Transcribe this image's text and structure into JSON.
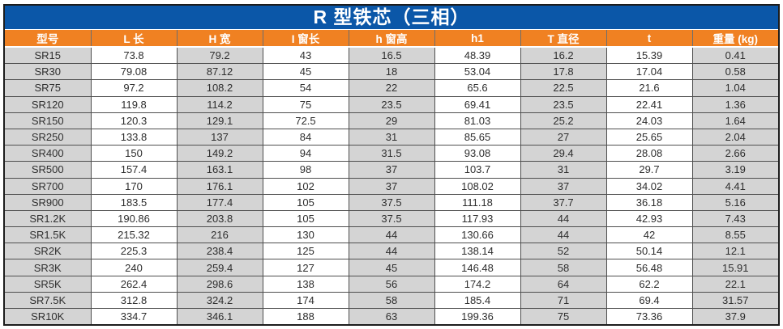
{
  "table": {
    "title": "R 型铁芯（三相）",
    "columns": [
      "型号",
      "L 长",
      "H 宽",
      "I 窗长",
      "h 窗高",
      "h1",
      "T 直径",
      "t",
      "重量 (kg)"
    ],
    "rows": [
      [
        "SR15",
        "73.8",
        "79.2",
        "43",
        "16.5",
        "48.39",
        "16.2",
        "15.39",
        "0.41"
      ],
      [
        "SR30",
        "79.08",
        "87.12",
        "45",
        "18",
        "53.04",
        "17.8",
        "17.04",
        "0.58"
      ],
      [
        "SR75",
        "97.2",
        "108.2",
        "54",
        "22",
        "65.6",
        "22.5",
        "21.6",
        "1.04"
      ],
      [
        "SR120",
        "119.8",
        "114.2",
        "75",
        "23.5",
        "69.41",
        "23.5",
        "22.41",
        "1.36"
      ],
      [
        "SR150",
        "120.3",
        "129.1",
        "72.5",
        "29",
        "81.03",
        "25.2",
        "24.03",
        "1.64"
      ],
      [
        "SR250",
        "133.8",
        "137",
        "84",
        "31",
        "85.65",
        "27",
        "25.65",
        "2.04"
      ],
      [
        "SR400",
        "150",
        "149.2",
        "94",
        "31.5",
        "93.08",
        "29.4",
        "28.08",
        "2.66"
      ],
      [
        "SR500",
        "157.4",
        "163.1",
        "98",
        "37",
        "103.7",
        "31",
        "29.7",
        "3.19"
      ],
      [
        "SR700",
        "170",
        "176.1",
        "102",
        "37",
        "108.02",
        "37",
        "34.02",
        "4.41"
      ],
      [
        "SR900",
        "183.5",
        "177.4",
        "105",
        "37.5",
        "111.18",
        "37.7",
        "36.18",
        "5.16"
      ],
      [
        "SR1.2K",
        "190.86",
        "203.8",
        "105",
        "37.5",
        "117.93",
        "44",
        "42.93",
        "7.43"
      ],
      [
        "SR1.5K",
        "215.32",
        "216",
        "130",
        "44",
        "130.66",
        "44",
        "42",
        "8.55"
      ],
      [
        "SR2K",
        "225.3",
        "238.4",
        "125",
        "44",
        "138.14",
        "52",
        "50.14",
        "12.1"
      ],
      [
        "SR3K",
        "240",
        "259.4",
        "127",
        "45",
        "146.48",
        "58",
        "56.48",
        "15.91"
      ],
      [
        "SR5K",
        "262.4",
        "298.6",
        "138",
        "56",
        "174.2",
        "64",
        "62.2",
        "22.1"
      ],
      [
        "SR7.5K",
        "312.8",
        "324.2",
        "174",
        "58",
        "185.4",
        "71",
        "69.4",
        "31.57"
      ],
      [
        "SR10K",
        "334.7",
        "346.1",
        "188",
        "63",
        "199.36",
        "75",
        "73.36",
        "37.9"
      ]
    ]
  },
  "colors": {
    "title_bg": "#0b57a8",
    "header_bg": "#f08122",
    "cell_gray": "#d4d4d4",
    "cell_white": "#ffffff",
    "grid_border": "#4f4f4f",
    "frame_border": "#1c1c1c",
    "text": "#2e2e2e"
  }
}
